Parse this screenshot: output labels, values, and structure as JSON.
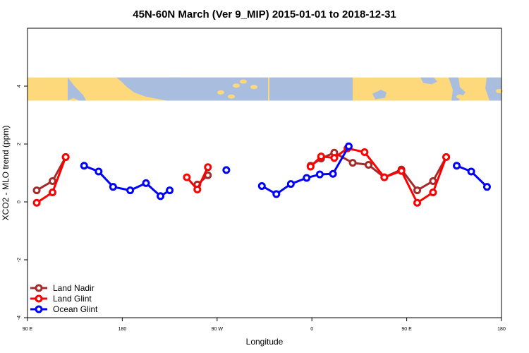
{
  "chart_data": {
    "type": "line",
    "title": "45N-60N March (Ver 9_MIP)   2015-01-01 to 2018-12-31",
    "xlabel": "Longitude",
    "ylabel": "XCO2 - MLO trend (ppm)",
    "xlim": [
      -90,
      270
    ],
    "ylim": [
      -4,
      6
    ],
    "x_ticks": [
      {
        "value": -90,
        "label": "90 E"
      },
      {
        "value": -18,
        "label": "180"
      },
      {
        "value": 54,
        "label": "90 W"
      },
      {
        "value": 126,
        "label": "0"
      },
      {
        "value": 198,
        "label": "90 E"
      },
      {
        "value": 270,
        "label": "180"
      }
    ],
    "y_ticks": [
      {
        "value": -4,
        "label": "-4"
      },
      {
        "value": -2,
        "label": "-2"
      },
      {
        "value": 0,
        "label": "0"
      },
      {
        "value": 2,
        "label": "2"
      },
      {
        "value": 4,
        "label": "4"
      }
    ],
    "map_band": {
      "y_range": [
        3.5,
        4.3
      ],
      "ocean_color": "#a9bedf",
      "land_color": "#fdd97c"
    },
    "legend_position": "bottom-left",
    "series": [
      {
        "name": "Land Nadir",
        "color": "#a52a2a",
        "segments": [
          [
            [
              -83,
              0.4
            ],
            [
              -71,
              0.72
            ],
            [
              -61,
              1.55
            ]
          ],
          [
            [
              39,
              0.6
            ],
            [
              47,
              0.92
            ]
          ],
          [
            [
              125,
              1.25
            ],
            [
              133,
              1.5
            ],
            [
              143,
              1.7
            ],
            [
              157,
              1.35
            ],
            [
              169,
              1.28
            ],
            [
              181,
              0.85
            ],
            [
              194,
              1.12
            ],
            [
              206,
              0.4
            ],
            [
              218,
              0.72
            ],
            [
              228,
              1.55
            ]
          ]
        ]
      },
      {
        "name": "Land Glint",
        "color": "#ff0000",
        "segments": [
          [
            [
              -83,
              -0.03
            ],
            [
              -71,
              0.33
            ],
            [
              -61,
              1.55
            ]
          ],
          [
            [
              31,
              0.85
            ],
            [
              39,
              0.43
            ],
            [
              47,
              1.2
            ]
          ],
          [
            [
              125,
              1.22
            ],
            [
              133,
              1.57
            ],
            [
              143,
              1.52
            ],
            [
              153,
              1.85
            ],
            [
              166,
              1.72
            ],
            [
              181,
              0.85
            ],
            [
              194,
              1.07
            ],
            [
              206,
              -0.03
            ],
            [
              218,
              0.33
            ],
            [
              228,
              1.55
            ]
          ]
        ]
      },
      {
        "name": "Ocean Glint",
        "color": "#0000ff",
        "segments": [
          [
            [
              -47,
              1.25
            ],
            [
              -36,
              1.05
            ],
            [
              -25,
              0.52
            ],
            [
              -12,
              0.4
            ],
            [
              0,
              0.65
            ],
            [
              11,
              0.2
            ],
            [
              18,
              0.4
            ]
          ],
          [
            [
              61,
              1.1
            ]
          ],
          [
            [
              88,
              0.55
            ],
            [
              99,
              0.27
            ],
            [
              110,
              0.62
            ],
            [
              122,
              0.83
            ],
            [
              132,
              0.95
            ],
            [
              142,
              0.97
            ],
            [
              154,
              1.92
            ]
          ],
          [
            [
              236,
              1.25
            ],
            [
              247,
              1.05
            ],
            [
              259,
              0.52
            ]
          ]
        ]
      }
    ]
  }
}
